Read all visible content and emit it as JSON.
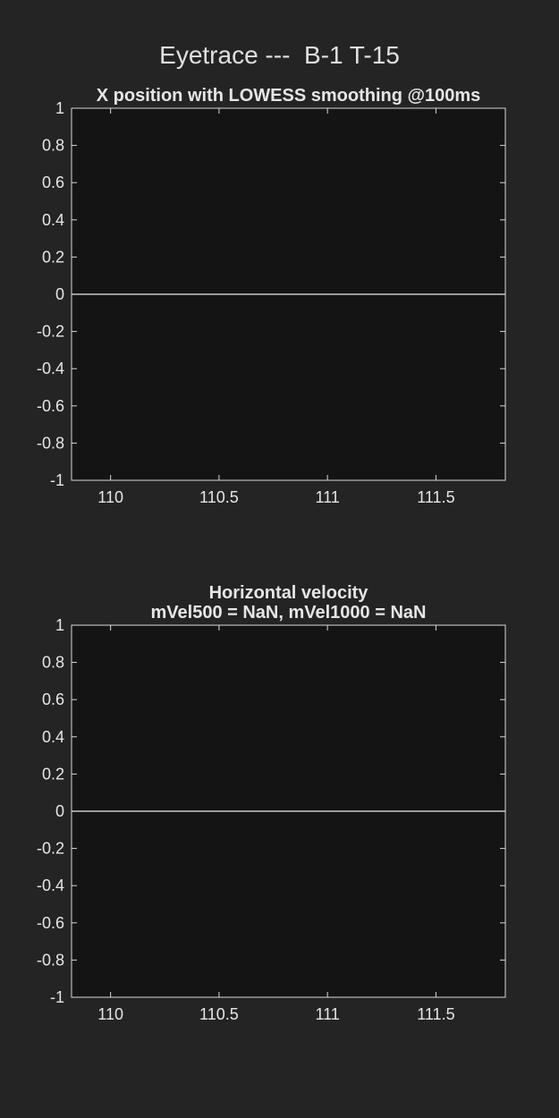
{
  "figure": {
    "title": "Eyetrace ---  B-1 T-15"
  },
  "chart_data": [
    {
      "type": "line",
      "title": "X position with LOWESS smoothing @100ms",
      "title_lines": [
        "X position with LOWESS smoothing @100ms"
      ],
      "xlabel": "",
      "ylabel": "",
      "xlim": [
        109.82,
        111.82
      ],
      "ylim": [
        -1,
        1
      ],
      "xticks": [
        110,
        110.5,
        111,
        111.5
      ],
      "xtick_labels": [
        "110",
        "110.5",
        "111",
        "111.5"
      ],
      "yticks": [
        1,
        0.8,
        0.6,
        0.4,
        0.2,
        0,
        -0.2,
        -0.4,
        -0.6,
        -0.8,
        -1
      ],
      "ytick_labels": [
        "1",
        "0.8",
        "0.6",
        "0.4",
        "0.2",
        "0",
        "-0.2",
        "-0.4",
        "-0.6",
        "-0.8",
        "-1"
      ],
      "grid": false,
      "series": [
        {
          "x": [
            109.82,
            111.82
          ],
          "y": [
            0,
            0
          ],
          "color": "#c8c8c8"
        }
      ],
      "colors": {
        "axes_bg": "#141414",
        "axis": "#d9d9d9",
        "text": "#e6e6e6"
      }
    },
    {
      "type": "line",
      "title": "Horizontal velocity mVel500 = NaN, mVel1000 = NaN",
      "title_lines": [
        "Horizontal velocity",
        "mVel500 = NaN, mVel1000 = NaN"
      ],
      "xlabel": "",
      "ylabel": "",
      "xlim": [
        109.82,
        111.82
      ],
      "ylim": [
        -1,
        1
      ],
      "xticks": [
        110,
        110.5,
        111,
        111.5
      ],
      "xtick_labels": [
        "110",
        "110.5",
        "111",
        "111.5"
      ],
      "yticks": [
        1,
        0.8,
        0.6,
        0.4,
        0.2,
        0,
        -0.2,
        -0.4,
        -0.6,
        -0.8,
        -1
      ],
      "ytick_labels": [
        "1",
        "0.8",
        "0.6",
        "0.4",
        "0.2",
        "0",
        "-0.2",
        "-0.4",
        "-0.6",
        "-0.8",
        "-1"
      ],
      "grid": false,
      "series": [
        {
          "x": [
            109.82,
            111.82
          ],
          "y": [
            0,
            0
          ],
          "color": "#c8c8c8"
        }
      ],
      "colors": {
        "axes_bg": "#141414",
        "axis": "#d9d9d9",
        "text": "#e6e6e6"
      }
    }
  ]
}
